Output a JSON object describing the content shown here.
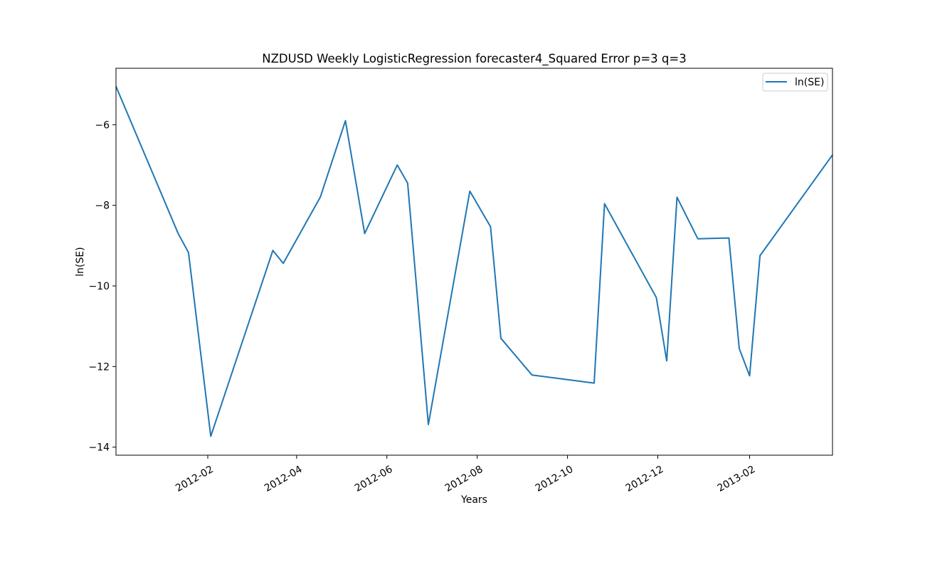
{
  "chart_data": {
    "type": "line",
    "title": "NZDUSD Weekly LogisticRegression forecaster4_Squared Error p=3 q=3",
    "xlabel": "Years",
    "ylabel": "ln(SE)",
    "xlim": [
      "2011-12-01",
      "2013-03-29"
    ],
    "ylim": [
      -14.2,
      -4.6
    ],
    "x_ticks": [
      "2012-02-01",
      "2012-04-01",
      "2012-06-01",
      "2012-08-01",
      "2012-10-01",
      "2012-12-01",
      "2013-02-01"
    ],
    "x_tick_labels": [
      "2012-02",
      "2012-04",
      "2012-06",
      "2012-08",
      "2012-10",
      "2012-12",
      "2013-02"
    ],
    "y_ticks": [
      -14,
      -12,
      -10,
      -8,
      -6
    ],
    "y_tick_labels": [
      "−14",
      "−12",
      "−10",
      "−8",
      "−6"
    ],
    "grid": false,
    "legend_position": "top-right",
    "color": "#1f77b4",
    "series": [
      {
        "name": "ln(SE)",
        "x": [
          "2011-12-01",
          "2012-01-12",
          "2012-01-19",
          "2012-02-03",
          "2012-03-16",
          "2012-03-23",
          "2012-04-17",
          "2012-05-04",
          "2012-05-17",
          "2012-06-08",
          "2012-06-15",
          "2012-06-29",
          "2012-07-27",
          "2012-08-10",
          "2012-08-17",
          "2012-09-07",
          "2012-10-19",
          "2012-10-26",
          "2012-11-30",
          "2012-12-07",
          "2012-12-14",
          "2012-12-28",
          "2013-01-18",
          "2013-01-25",
          "2013-02-01",
          "2013-02-08",
          "2013-03-29"
        ],
        "values": [
          -5.05,
          -8.7,
          -9.17,
          -13.73,
          -9.12,
          -9.44,
          -7.8,
          -5.9,
          -8.7,
          -7.0,
          -7.45,
          -13.44,
          -7.65,
          -8.53,
          -11.3,
          -12.21,
          -12.41,
          -7.96,
          -10.29,
          -11.86,
          -7.8,
          -8.83,
          -8.81,
          -11.55,
          -12.23,
          -9.25,
          -6.75
        ]
      }
    ]
  }
}
